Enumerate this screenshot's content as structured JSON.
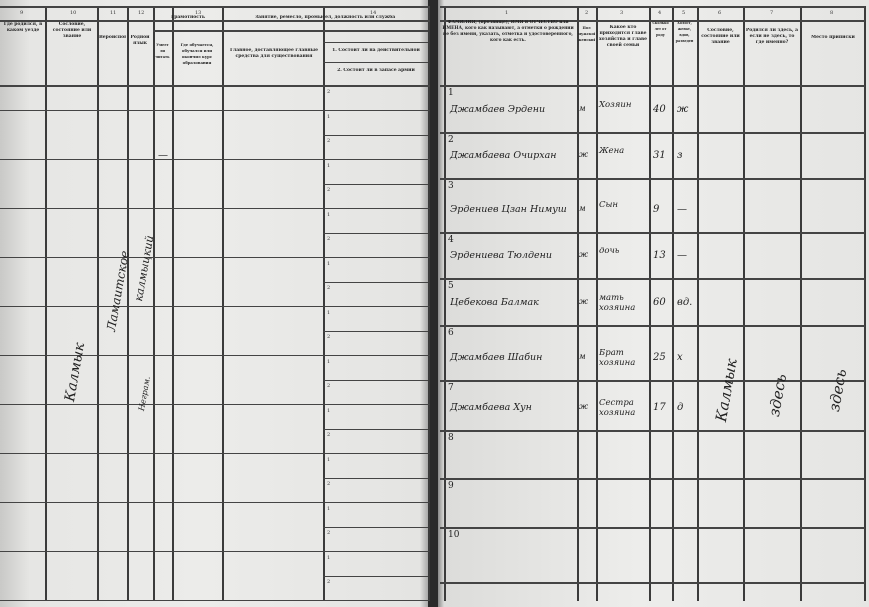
{
  "left_page": {
    "column_numbers": [
      "9",
      "10",
      "11",
      "12",
      "13",
      "14"
    ],
    "headers": {
      "col9": "Где родился, в каком уезде",
      "col10": "Сословие, состояние или звание",
      "col11": "Вероисповедание",
      "col12": "Родной язык",
      "literacy": "Грамотность",
      "literacy_a": "Умеет ли читать",
      "literacy_b": "Где обучается, обучался или окончил курс образования",
      "occupation": "Занятие, ремесло, промысел, должность или служба",
      "occ_main": "Главное, доставляющее главные средства для существования",
      "occ_sub1": "1. Состоит ли на действительной",
      "occ_sub2": "2. Состоит ли в запасе армии"
    },
    "entries": {
      "col10": "Калмык",
      "col11": "Ламаитское",
      "col12": "калмыцкий",
      "col13a": "—",
      "col13b": "Неграм."
    }
  },
  "right_page": {
    "column_numbers": [
      "1",
      "2",
      "3",
      "4",
      "5",
      "6",
      "7",
      "8"
    ],
    "headers": {
      "name": "ФАМИЛИЯ, (прозвище), ИМЯ и ОТЧЕСТВО или ИМЕНА, кого как называют, а отметки о рождении не без имени, указать, отметка и удостоверенного, кого как есть.",
      "sex": "Пол мужской, женский",
      "relation": "Какое кто приходится главе хозяйства и главе своей семьи",
      "age": "Сколько лет от роду",
      "marital": "Холост, женат, вдов, разведен",
      "col6": "Сословие, состояние или звание",
      "col7": "Родился ли здесь, а если не здесь, то где именно?",
      "col8": "Место приписки"
    },
    "rows": [
      {
        "n": "1",
        "name": "Джамбаев Эрдени",
        "sex": "м",
        "relation": "Хозяин",
        "age": "40",
        "marital": "ж"
      },
      {
        "n": "2",
        "name": "Джамбаева Очирхан",
        "sex": "ж",
        "relation": "Жена",
        "age": "31",
        "marital": "з"
      },
      {
        "n": "3",
        "name": "Эрдениев Цзан Нимуш",
        "sex": "м",
        "relation": "Сын",
        "age": "9",
        "marital": "—"
      },
      {
        "n": "4",
        "name": "Эрдениева Тюлдени",
        "sex": "ж",
        "relation": "дочь",
        "age": "13",
        "marital": "—"
      },
      {
        "n": "5",
        "name": "Цебекова Балмак",
        "sex": "ж",
        "relation": "мать хозяина",
        "age": "60",
        "marital": "вд."
      },
      {
        "n": "6",
        "name": "Джамбаев Шабин",
        "sex": "м",
        "relation": "Брат хозяина",
        "age": "25",
        "marital": "х"
      },
      {
        "n": "7",
        "name": "Джамбаева Хун",
        "sex": "ж",
        "relation": "Сестра хозяина",
        "age": "17",
        "marital": "д"
      },
      {
        "n": "8"
      },
      {
        "n": "9"
      },
      {
        "n": "10"
      }
    ],
    "vertical_entries": {
      "col6": "Калмык",
      "col7": "здесь",
      "col8": "здесь"
    }
  }
}
